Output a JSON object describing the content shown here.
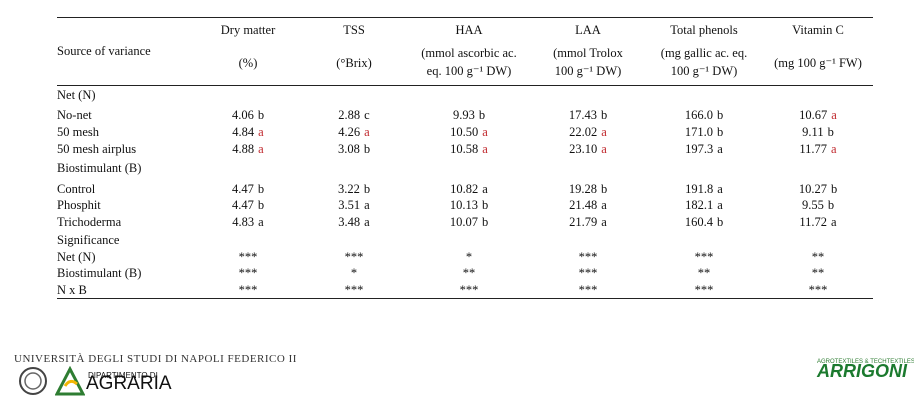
{
  "table": {
    "columns": [
      {
        "name": "Source of variance"
      },
      {
        "name": "Dry matter",
        "unit": [
          "(%)"
        ]
      },
      {
        "name": "TSS",
        "unit": [
          "(°Brix)"
        ]
      },
      {
        "name": "HAA",
        "unit": [
          "(mmol ascorbic ac.",
          "eq. 100 g⁻¹ DW)"
        ]
      },
      {
        "name": "LAA",
        "unit": [
          "(mmol Trolox",
          "100 g⁻¹ DW)"
        ]
      },
      {
        "name": "Total phenols",
        "unit": [
          "(mg gallic ac. eq.",
          "100 g⁻¹ DW)"
        ]
      },
      {
        "name": "Vitamin C",
        "unit": [
          "(mg 100 g⁻¹ FW)"
        ]
      }
    ],
    "rows": [
      {
        "label": "Net (N)"
      },
      {
        "label": "No-net",
        "cells": [
          {
            "value": "4.06",
            "letter": "b"
          },
          {
            "value": "2.88",
            "letter": "c"
          },
          {
            "value": "9.93",
            "letter": "b"
          },
          {
            "value": "17.43",
            "letter": "b"
          },
          {
            "value": "166.0",
            "letter": "b"
          },
          {
            "value": "10.67",
            "letter": "a",
            "letter_color": "#c0282d"
          }
        ]
      },
      {
        "label": "50 mesh",
        "cells": [
          {
            "value": "4.84",
            "letter": "a",
            "letter_color": "#c0282d"
          },
          {
            "value": "4.26",
            "letter": "a",
            "letter_color": "#c0282d"
          },
          {
            "value": "10.50",
            "letter": "a",
            "letter_color": "#c0282d"
          },
          {
            "value": "22.02",
            "letter": "a",
            "letter_color": "#c0282d"
          },
          {
            "value": "171.0",
            "letter": "b"
          },
          {
            "value": "9.11",
            "letter": "b"
          }
        ]
      },
      {
        "label": "50 mesh airplus",
        "cells": [
          {
            "value": "4.88",
            "letter": "a",
            "letter_color": "#c0282d"
          },
          {
            "value": "3.08",
            "letter": "b"
          },
          {
            "value": "10.58",
            "letter": "a",
            "letter_color": "#c0282d"
          },
          {
            "value": "23.10",
            "letter": "a",
            "letter_color": "#c0282d"
          },
          {
            "value": "197.3",
            "letter": "a"
          },
          {
            "value": "11.77",
            "letter": "a",
            "letter_color": "#c0282d"
          }
        ]
      },
      {
        "label": "Biostimulant (B)"
      },
      {
        "label": "Control",
        "cells": [
          {
            "value": "4.47",
            "letter": "b"
          },
          {
            "value": "3.22",
            "letter": "b"
          },
          {
            "value": "10.82",
            "letter": "a"
          },
          {
            "value": "19.28",
            "letter": "b"
          },
          {
            "value": "191.8",
            "letter": "a"
          },
          {
            "value": "10.27",
            "letter": "b"
          }
        ]
      },
      {
        "label": "Phosphit",
        "cells": [
          {
            "value": "4.47",
            "letter": "b"
          },
          {
            "value": "3.51",
            "letter": "a"
          },
          {
            "value": "10.13",
            "letter": "b"
          },
          {
            "value": "21.48",
            "letter": "a"
          },
          {
            "value": "182.1",
            "letter": "a"
          },
          {
            "value": "9.55",
            "letter": "b"
          }
        ]
      },
      {
        "label": "Trichoderma",
        "cells": [
          {
            "value": "4.83",
            "letter": "a"
          },
          {
            "value": "3.48",
            "letter": "a"
          },
          {
            "value": "10.07",
            "letter": "b"
          },
          {
            "value": "21.79",
            "letter": "a"
          },
          {
            "value": "160.4",
            "letter": "b"
          },
          {
            "value": "11.72",
            "letter": "a"
          }
        ]
      },
      {
        "label": "Significance"
      },
      {
        "label": "Net (N)",
        "cells": [
          "***",
          "***",
          "*",
          "***",
          "***",
          "**"
        ]
      },
      {
        "label": "Biostimulant (B)",
        "cells": [
          "***",
          "*",
          "**",
          "***",
          "**",
          "**"
        ]
      },
      {
        "label": "N x B",
        "cells": [
          "***",
          "***",
          "***",
          "***",
          "***",
          "***"
        ]
      }
    ]
  },
  "footer": {
    "university": "UNIVERSITÀ DEGLI STUDI DI NAPOLI FEDERICO II",
    "department_prefix": "DIPARTIMENTO DI",
    "department": "AGRARIA",
    "sponsor_tagline": "AGROTEXTILES & TECHTEXTILES",
    "sponsor": "ARRIGONI"
  }
}
